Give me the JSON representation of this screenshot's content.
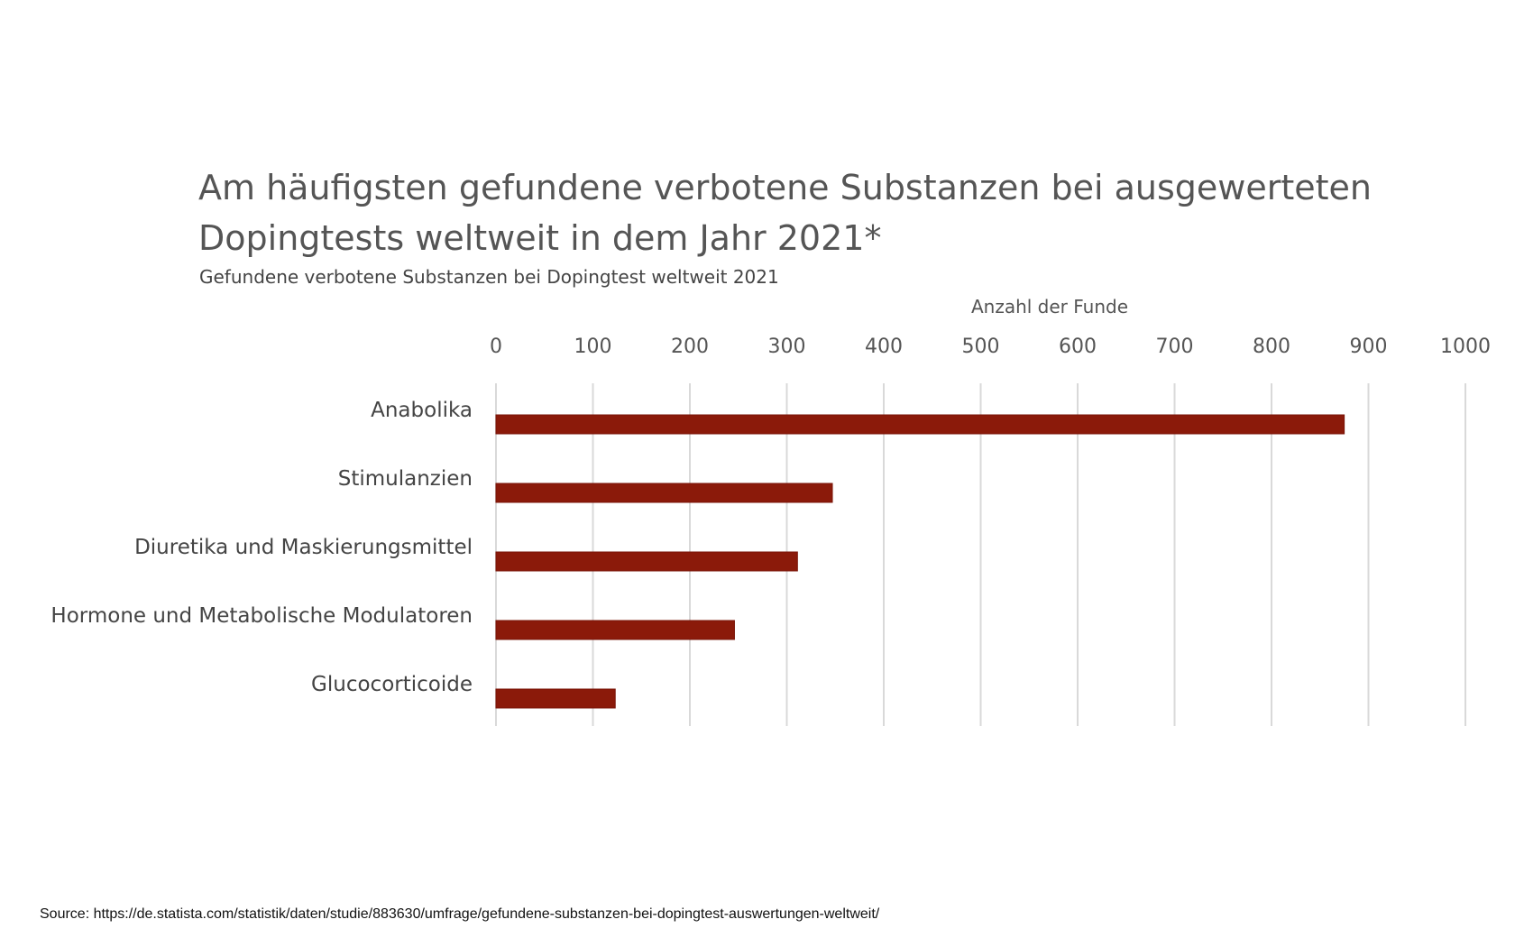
{
  "chart_data": {
    "type": "bar",
    "orientation": "horizontal",
    "title": "Am häufigsten gefundene verbotene Substanzen bei ausgewerteten Dopingtests weltweit in dem Jahr 2021*",
    "subtitle": "Gefundene verbotene Substanzen bei Dopingtest weltweit 2021",
    "xlabel": "Anzahl der Funde",
    "xlim": [
      0,
      1000
    ],
    "xticks": [
      "0",
      "100",
      "200",
      "300",
      "400",
      "500",
      "600",
      "700",
      "800",
      "900",
      "1000"
    ],
    "categories": [
      "Anabolika",
      "Stimulanzien",
      "Diuretika und Maskierungsmittel",
      "Hormone und Metabolische Modulatoren",
      "Glucocorticoide"
    ],
    "values": [
      875,
      347,
      311,
      246,
      123
    ],
    "axis_position": "top",
    "grid": true,
    "bar_color": "#8b1a0a",
    "grid_color": "#d9d9d9"
  },
  "source": "Source: https://de.statista.com/statistik/daten/studie/883630/umfrage/gefundene-substanzen-bei-dopingtest-auswertungen-weltweit/"
}
